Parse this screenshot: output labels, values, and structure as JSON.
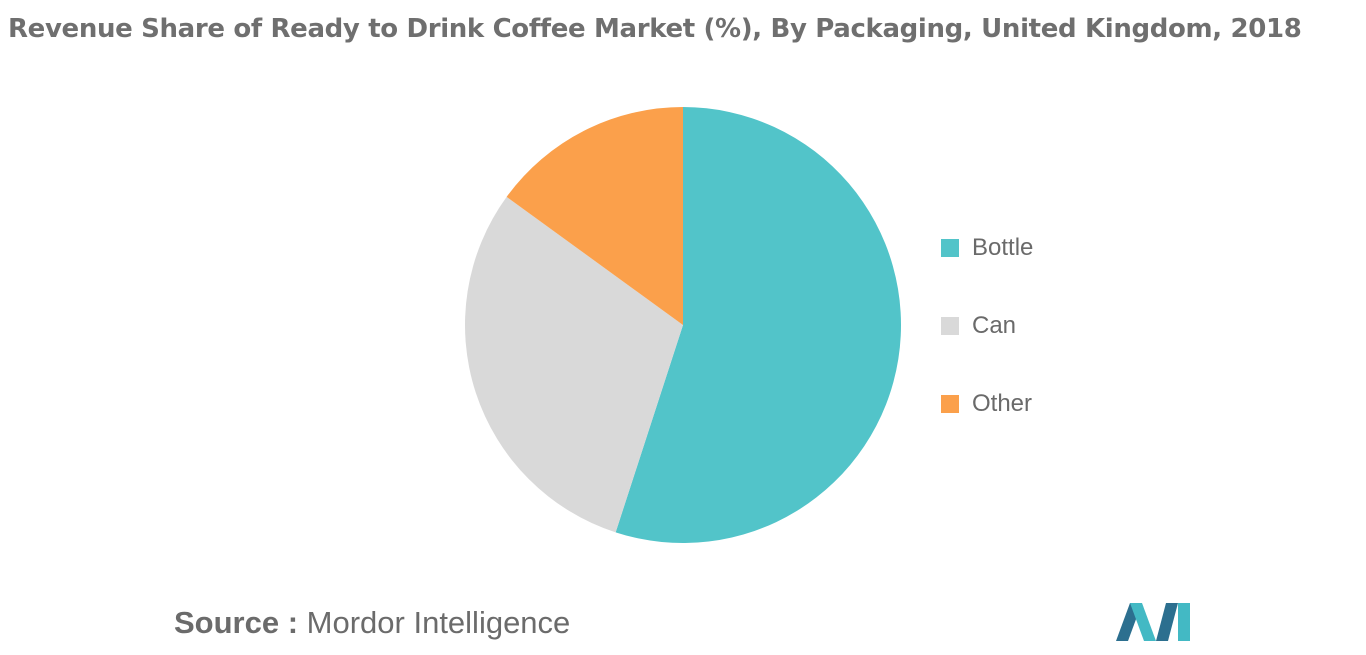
{
  "chart_data": {
    "type": "pie",
    "title": "Revenue Share of Ready to Drink Coffee Market (%), By Packaging, United Kingdom, 2018",
    "categories": [
      "Bottle",
      "Can",
      "Other"
    ],
    "values": [
      55,
      30,
      15
    ],
    "colors": [
      "#52c4c9",
      "#d9d9d9",
      "#fba04b"
    ],
    "start_angle_deg": 0,
    "direction": "clockwise",
    "legend_position": "right"
  },
  "source": {
    "label": "Source :",
    "text": "Mordor Intelligence"
  },
  "logo": {
    "icon": "mordor-intelligence-logo",
    "colors": [
      "#2c6f8f",
      "#43b9c4"
    ]
  }
}
